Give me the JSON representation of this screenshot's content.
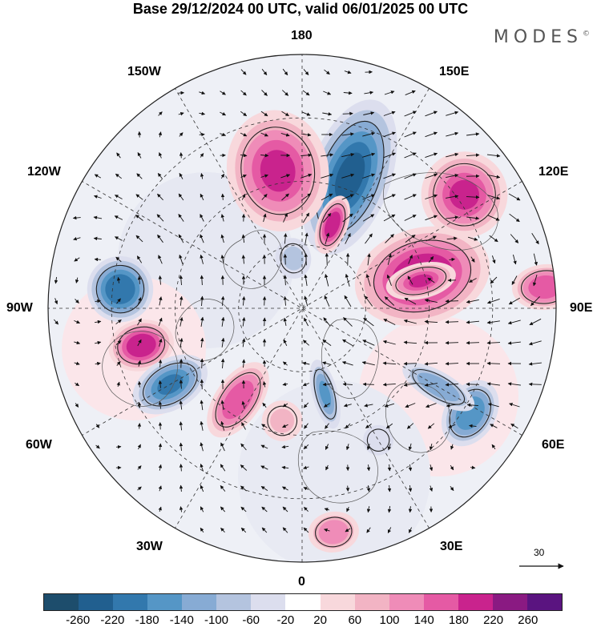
{
  "title": "Base 29/12/2024 00 UTC, valid 06/01/2025 00 UTC",
  "brand": "MODES",
  "brand_mark": "©",
  "longitude_labels": {
    "top": "180",
    "bottom": "0",
    "left": "90W",
    "right": "90E",
    "upper_left_1": "150W",
    "upper_right_1": "150E",
    "upper_left_2": "120W",
    "upper_right_2": "120E",
    "lower_left_1": "60W",
    "lower_right_1": "60E",
    "lower_left_2": "30W",
    "lower_right_2": "30E"
  },
  "vector_scale": {
    "value": "30"
  },
  "colorbar": {
    "colors": [
      "#1d4d6c",
      "#215f8f",
      "#3278ad",
      "#5596c6",
      "#87abd4",
      "#b4c4df",
      "#dcdeee",
      "#ffffff",
      "#f8d8dc",
      "#f2b4c4",
      "#ef8cb8",
      "#e55aa4",
      "#c9238d",
      "#8a1a82",
      "#5a1480"
    ],
    "tick_labels": [
      "-260",
      "-220",
      "-180",
      "-140",
      "-100",
      "-60",
      "-20",
      "20",
      "60",
      "100",
      "140",
      "180",
      "220",
      "260"
    ]
  },
  "anomaly_cells": [
    {
      "lon": 160,
      "r": 0.55,
      "value": -230,
      "sx": 0.16,
      "sy": 0.32
    },
    {
      "lon": -170,
      "r": 0.55,
      "value": 190,
      "sx": 0.2,
      "sy": 0.24
    },
    {
      "lon": 105,
      "r": 0.49,
      "value": 210,
      "sx": 0.19,
      "sy": 0.27
    },
    {
      "lon": 160,
      "r": 0.35,
      "value": 200,
      "sx": 0.06,
      "sy": 0.12
    },
    {
      "lon": 125,
      "r": 0.78,
      "value": 190,
      "sx": 0.17,
      "sy": 0.17
    },
    {
      "lon": 58,
      "r": 0.78,
      "value": -170,
      "sx": 0.14,
      "sy": 0.1
    },
    {
      "lon": -96,
      "r": 0.72,
      "value": -200,
      "sx": 0.13,
      "sy": 0.13
    },
    {
      "lon": -77,
      "r": 0.65,
      "value": 200,
      "sx": 0.1,
      "sy": 0.13
    },
    {
      "lon": -60,
      "r": 0.6,
      "value": -180,
      "sx": 0.1,
      "sy": 0.16
    },
    {
      "lon": -35,
      "r": 0.44,
      "value": 170,
      "sx": 0.09,
      "sy": 0.17
    },
    {
      "lon": 15,
      "r": 0.35,
      "value": -150,
      "sx": 0.05,
      "sy": 0.14
    },
    {
      "lon": 60,
      "r": 0.62,
      "value": -130,
      "sx": 0.06,
      "sy": 0.16
    },
    {
      "lon": 103,
      "r": 0.48,
      "value": 190,
      "sx": 0.07,
      "sy": 0.14
    },
    {
      "lon": 95,
      "r": 0.96,
      "value": 180,
      "sx": 0.09,
      "sy": 0.13
    },
    {
      "lon": -170,
      "r": 0.2,
      "value": -60,
      "sx": 0.07,
      "sy": 0.08
    },
    {
      "lon": 8,
      "r": 0.89,
      "value": 130,
      "sx": 0.1,
      "sy": 0.08
    },
    {
      "lon": 30,
      "r": 0.6,
      "value": -40,
      "sx": 0.06,
      "sy": 0.06
    },
    {
      "lon": -10,
      "r": 0.45,
      "value": 70,
      "sx": 0.08,
      "sy": 0.08
    }
  ],
  "overlays": [
    "wind vectors",
    "coastlines",
    "graticule"
  ]
}
